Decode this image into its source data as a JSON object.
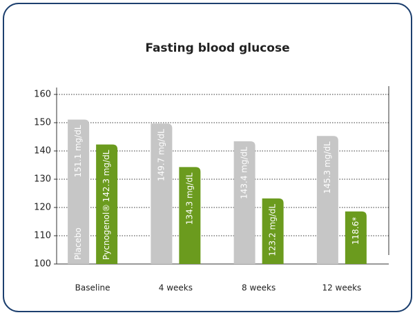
{
  "chart_data": {
    "type": "bar",
    "title": "Fasting blood glucose",
    "categories": [
      "Baseline",
      "4 weeks",
      "8 weeks",
      "12 weeks"
    ],
    "series": [
      {
        "name": "Placebo",
        "color": "#c6c6c6",
        "values": [
          151.1,
          149.7,
          143.4,
          145.3
        ],
        "value_labels": [
          "151.1 mg/dL",
          "149.7 mg/dL",
          "143.4 mg/dL",
          "145.3 mg/dL"
        ]
      },
      {
        "name": "Pycnogenol®",
        "color": "#6b9b1e",
        "values": [
          142.3,
          134.3,
          123.2,
          118.6
        ],
        "value_labels": [
          "142.3 mg/dL",
          "134.3 mg/dL",
          "123.2 mg/dL",
          "118.6*"
        ]
      }
    ],
    "ylim": [
      100,
      160
    ],
    "yticks": [
      100,
      110,
      120,
      130,
      140,
      150,
      160
    ],
    "grid": true
  }
}
